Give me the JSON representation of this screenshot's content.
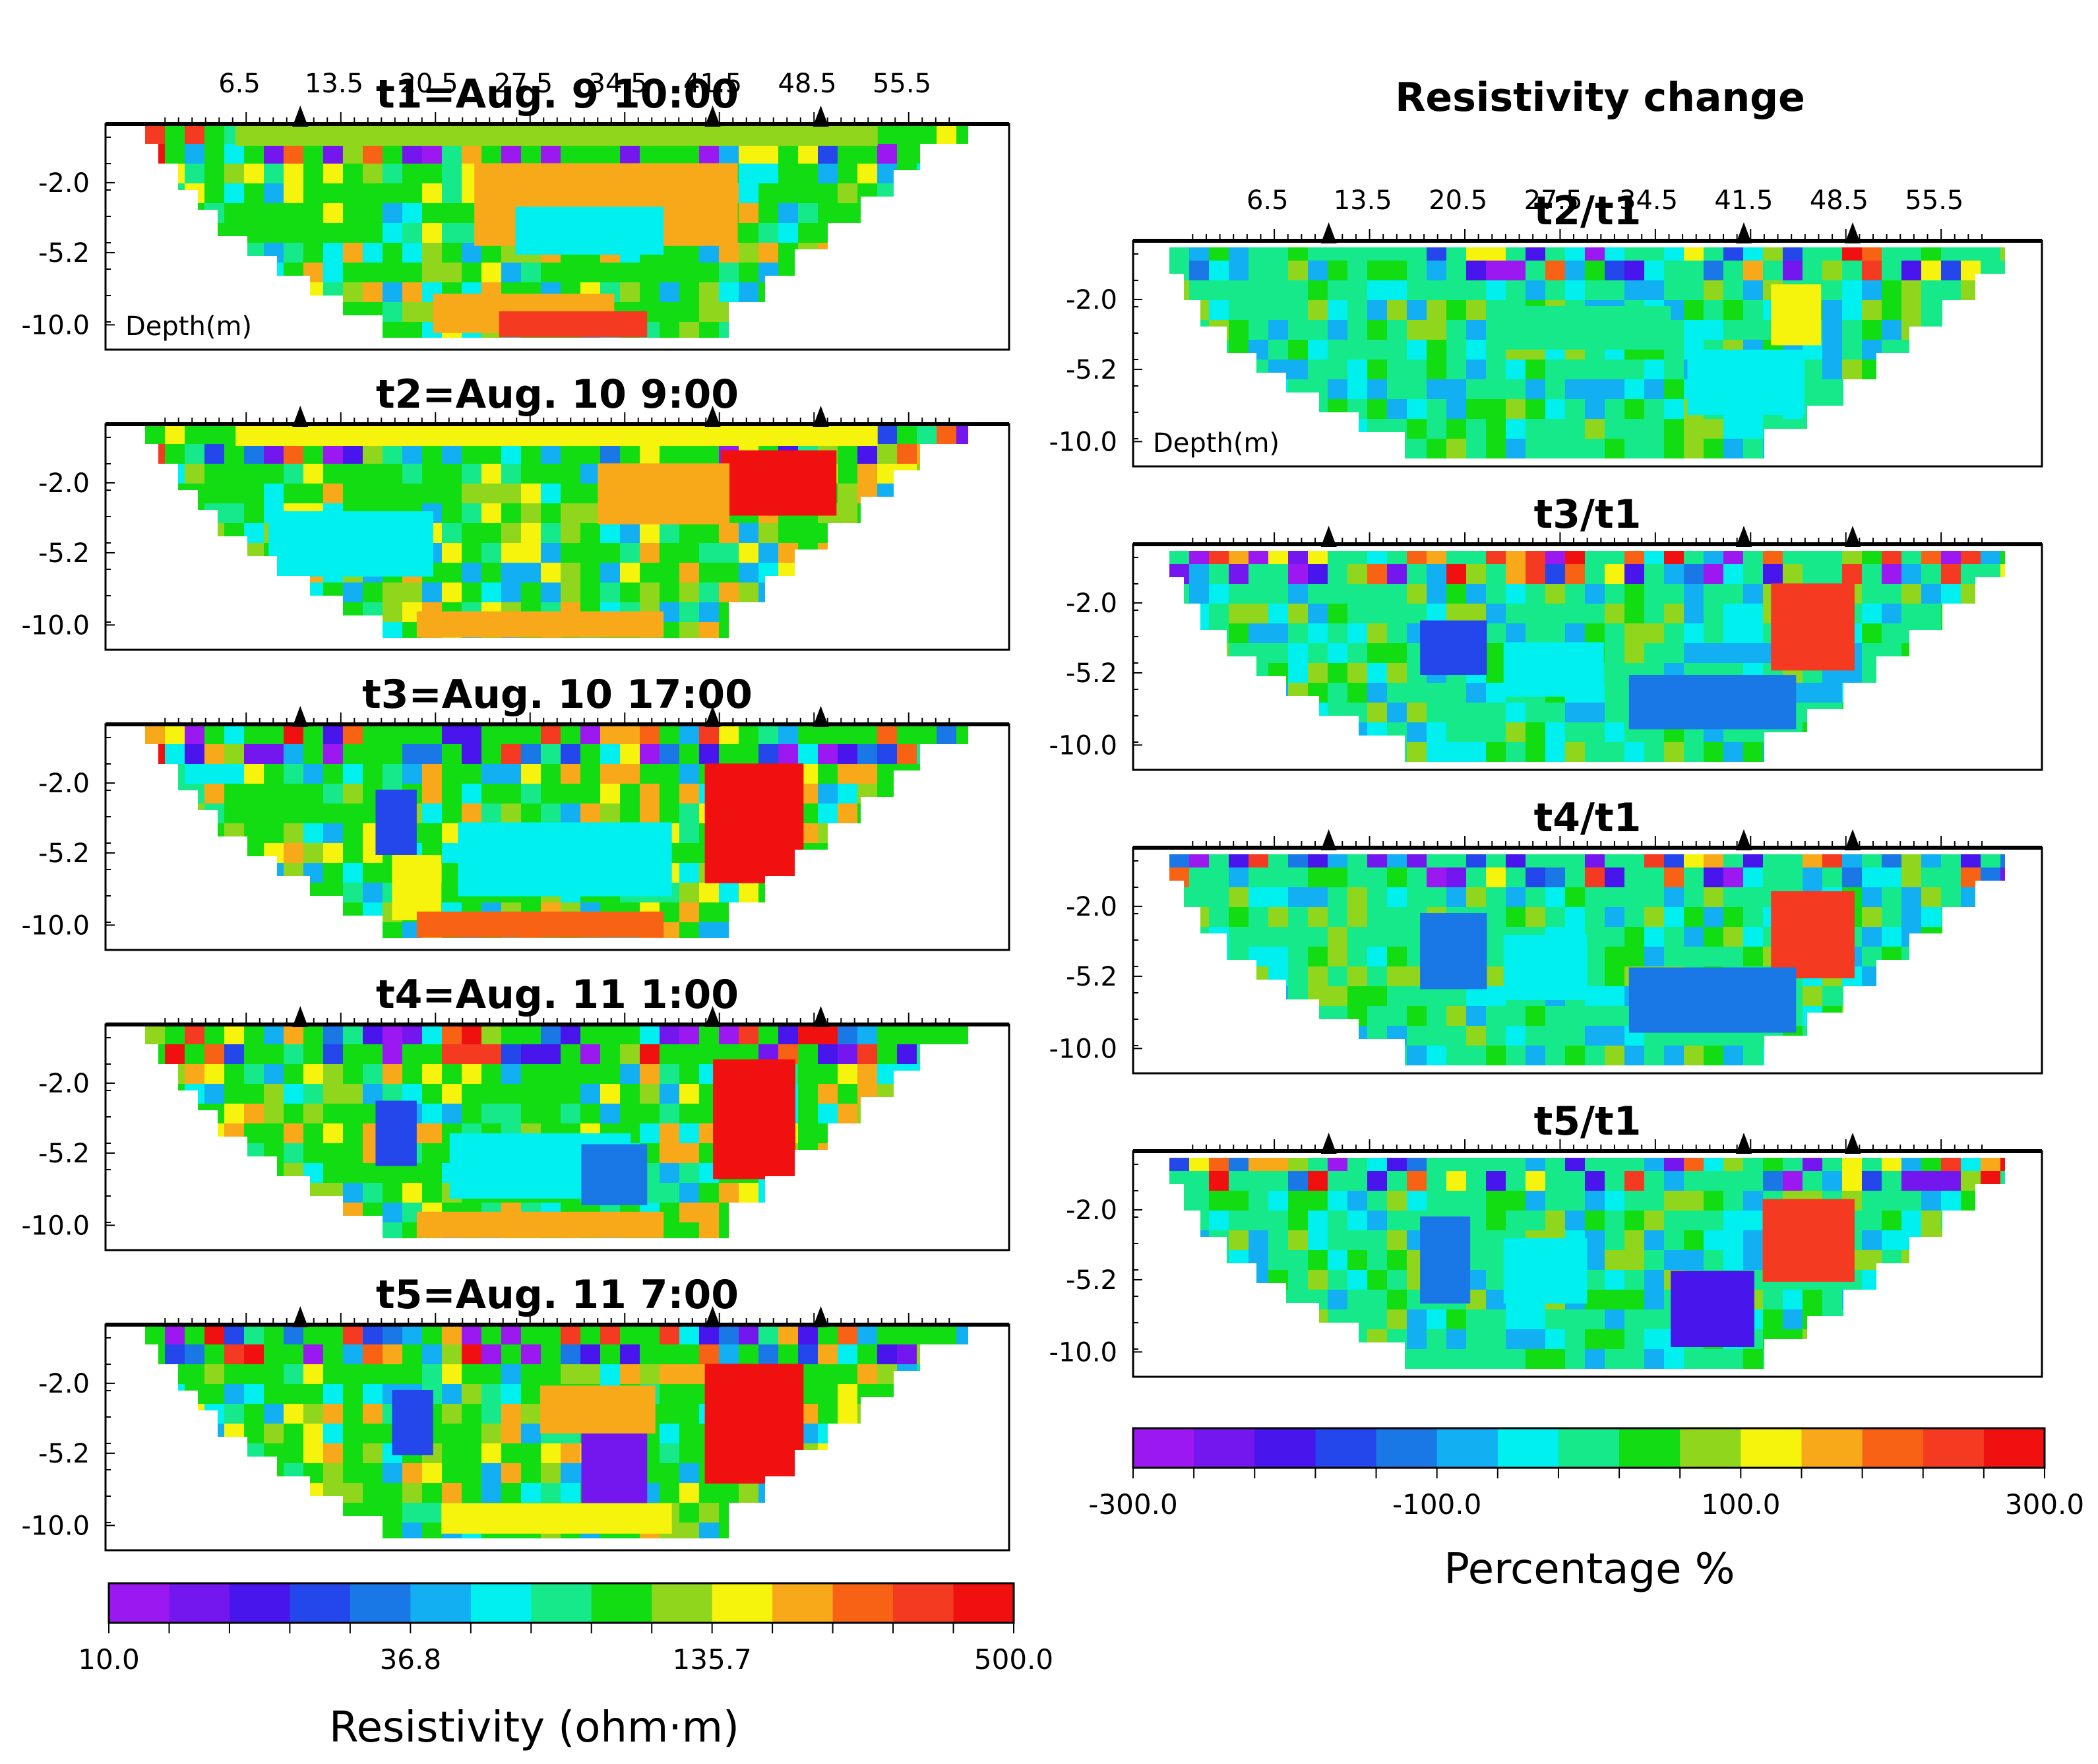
{
  "chart_data": [
    {
      "type": "heatmap",
      "group": "resistivity",
      "title": "t1=Aug. 9 10:00",
      "xlabel": "",
      "ylabel": "Depth(m)",
      "x_ticks": [
        "6.5",
        "13.5",
        "20.5",
        "27.5",
        "34.5",
        "41.5",
        "48.5",
        "55.5"
      ],
      "y_ticks": [
        "-2.0",
        "-5.2",
        "-10.0"
      ],
      "markers_x": [
        11,
        41.5,
        49.5
      ],
      "colorbar": "resistivity"
    },
    {
      "type": "heatmap",
      "group": "resistivity",
      "title": "t2=Aug. 10 9:00",
      "y_ticks": [
        "-2.0",
        "-5.2",
        "-10.0"
      ],
      "markers_x": [
        11,
        41.5,
        49.5
      ],
      "colorbar": "resistivity"
    },
    {
      "type": "heatmap",
      "group": "resistivity",
      "title": "t3=Aug. 10 17:00",
      "y_ticks": [
        "-2.0",
        "-5.2",
        "-10.0"
      ],
      "markers_x": [
        11,
        41.5,
        49.5
      ],
      "colorbar": "resistivity"
    },
    {
      "type": "heatmap",
      "group": "resistivity",
      "title": "t4=Aug. 11 1:00",
      "y_ticks": [
        "-2.0",
        "-5.2",
        "-10.0"
      ],
      "markers_x": [
        11,
        41.5,
        49.5
      ],
      "colorbar": "resistivity"
    },
    {
      "type": "heatmap",
      "group": "resistivity",
      "title": "t5=Aug. 11 7:00",
      "y_ticks": [
        "-2.0",
        "-5.2",
        "-10.0"
      ],
      "markers_x": [
        11,
        41.5,
        49.5
      ],
      "colorbar": "resistivity"
    },
    {
      "type": "heatmap",
      "group": "change",
      "title": "t2/t1",
      "xlabel": "",
      "ylabel": "Depth(m)",
      "x_ticks": [
        "6.5",
        "13.5",
        "20.5",
        "27.5",
        "34.5",
        "41.5",
        "48.5",
        "55.5"
      ],
      "y_ticks": [
        "-2.0",
        "-5.2",
        "-10.0"
      ],
      "markers_x": [
        11,
        41.5,
        49.5
      ],
      "colorbar": "percentage"
    },
    {
      "type": "heatmap",
      "group": "change",
      "title": "t3/t1",
      "y_ticks": [
        "-2.0",
        "-5.2",
        "-10.0"
      ],
      "markers_x": [
        11,
        41.5,
        49.5
      ],
      "colorbar": "percentage"
    },
    {
      "type": "heatmap",
      "group": "change",
      "title": "t4/t1",
      "y_ticks": [
        "-2.0",
        "-5.2",
        "-10.0"
      ],
      "markers_x": [
        11,
        41.5,
        49.5
      ],
      "colorbar": "percentage"
    },
    {
      "type": "heatmap",
      "group": "change",
      "title": "t5/t1",
      "y_ticks": [
        "-2.0",
        "-5.2",
        "-10.0"
      ],
      "markers_x": [
        11,
        41.5,
        49.5
      ],
      "colorbar": "percentage"
    }
  ],
  "right_header": "Resistivity change",
  "colorbars": {
    "resistivity": {
      "title": "Resistivity  (ohm·m)",
      "tick_labels": [
        "10.0",
        "36.8",
        "135.7",
        "500.0"
      ],
      "colors": [
        "#9b19f0",
        "#7417ee",
        "#4815ed",
        "#2347ea",
        "#1978e6",
        "#12b0f2",
        "#00f0f0",
        "#16e98a",
        "#12dd12",
        "#8fd61d",
        "#f6f40c",
        "#f7a91a",
        "#f76215",
        "#f53a22",
        "#f01010"
      ]
    },
    "percentage": {
      "title": "Percentage %",
      "tick_labels": [
        "-300.0",
        "-100.0",
        "100.0",
        "300.0"
      ],
      "colors": [
        "#9b19f0",
        "#7417ee",
        "#4815ed",
        "#2347ea",
        "#1978e6",
        "#12b0f2",
        "#00f0f0",
        "#16e98a",
        "#12dd12",
        "#8fd61d",
        "#f6f40c",
        "#f7a91a",
        "#f76215",
        "#f53a22",
        "#f01010"
      ]
    }
  }
}
